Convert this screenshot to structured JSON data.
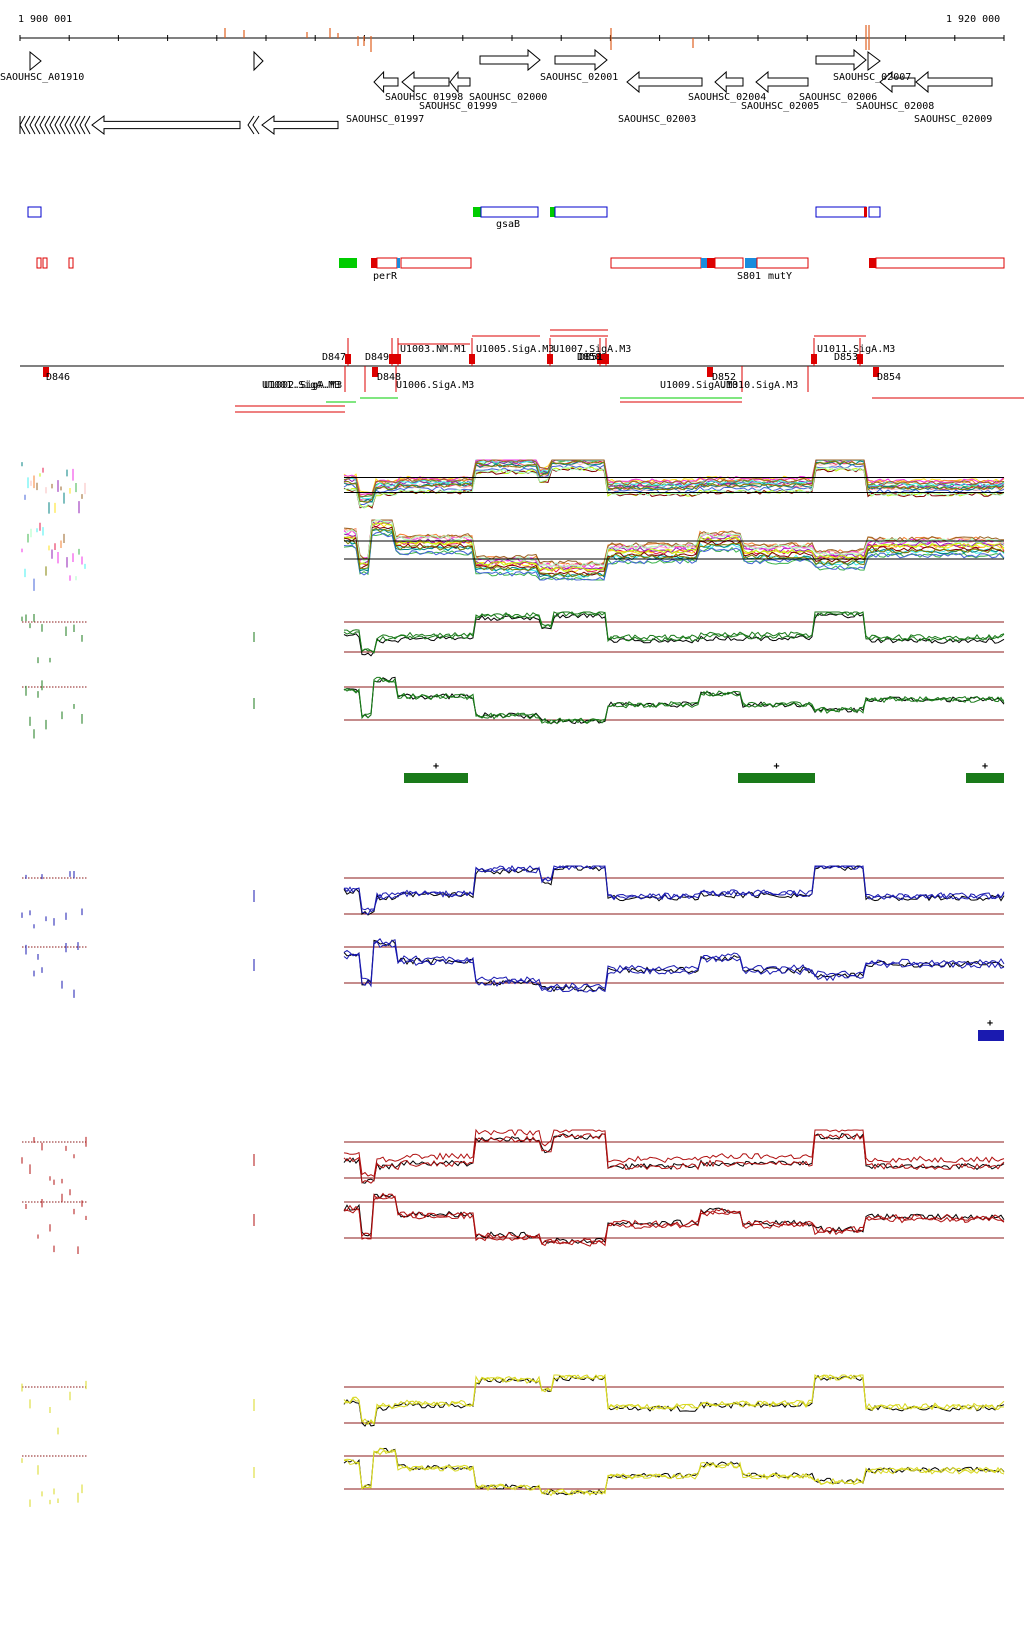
{
  "ruler": {
    "start_label": "1 900 001",
    "end_label": "1 920 000",
    "start_bp": 1900001,
    "end_bp": 1920000
  },
  "genes": [
    {
      "label": "SAOUHSC_A01910",
      "strand": "+"
    },
    {
      "label": "SAOUHSC_01997",
      "strand": "-"
    },
    {
      "label": "SAOUHSC_01998",
      "strand": "-"
    },
    {
      "label": "SAOUHSC_01999",
      "strand": "-"
    },
    {
      "label": "SAOUHSC_02000",
      "strand": "+"
    },
    {
      "label": "SAOUHSC_02001",
      "strand": "+"
    },
    {
      "label": "SAOUHSC_02003",
      "strand": "-"
    },
    {
      "label": "SAOUHSC_02004",
      "strand": "-"
    },
    {
      "label": "SAOUHSC_02005",
      "strand": "-"
    },
    {
      "label": "SAOUHSC_02006",
      "strand": "+"
    },
    {
      "label": "SAOUHSC_02007",
      "strand": "+"
    },
    {
      "label": "SAOUHSC_02008",
      "strand": "-"
    },
    {
      "label": "SAOUHSC_02009",
      "strand": "-"
    }
  ],
  "features_plus_labels": [
    "gsaB"
  ],
  "features_minus_labels": [
    "perR",
    "S801",
    "mutY"
  ],
  "regulatory_labels": {
    "upper": [
      "D847",
      "D849",
      "U1003.NM.M1",
      "U1005.SigA.M3",
      "U1007.SigA.M3",
      "D850",
      "D851",
      "U1011.SigA.M3",
      "D853"
    ],
    "lower": [
      "D846",
      "U1001.SigA.M3",
      "U1002.SigA.M3",
      "D848",
      "U1006.SigA.M3",
      "U1009.SigA.M3",
      "U1010.SigA.M3",
      "D852",
      "D854"
    ]
  },
  "segment_marker": "+",
  "colors": {
    "ruler_marks": "#e06020",
    "gene_outline": "#000000",
    "plus_feature": "#0000cc",
    "minus_feature": "#dd0000",
    "highlight_green": "#00cc00",
    "highlight_blue": "#1a8cdd",
    "panel_green": "#1a7a1a",
    "panel_blue": "#1a1ab0",
    "panel_red": "#b01010",
    "panel_yellow": "#d8d820",
    "threshold": "#8b1a1a"
  }
}
